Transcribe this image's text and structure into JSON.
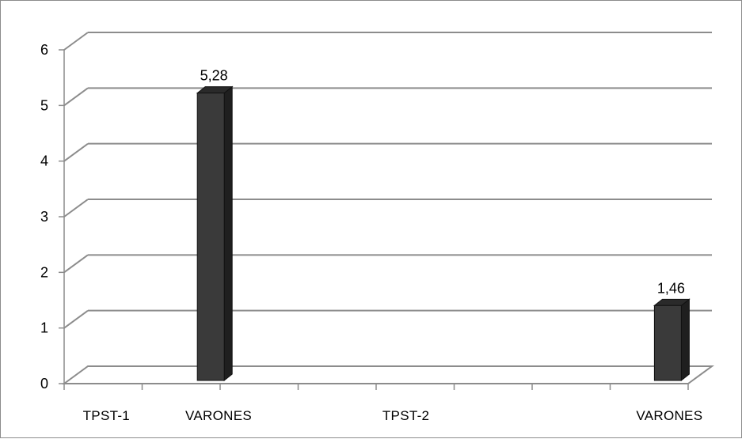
{
  "chart_data": {
    "type": "bar",
    "style": "3d-column",
    "categories": [
      "TPST-1",
      "VARONES",
      "TPST-2",
      "VARONES"
    ],
    "values": [
      null,
      5.28,
      null,
      1.46
    ],
    "data_labels": [
      "",
      "5,28",
      "",
      "1,46"
    ],
    "title": "",
    "xlabel": "",
    "ylabel": "",
    "ylim": [
      0,
      6
    ],
    "yticks": [
      0,
      1,
      2,
      3,
      4,
      5,
      6
    ],
    "grid": true,
    "legend": "none",
    "bar_color": "#3a3a3a",
    "grid_color": "#8c8c8c"
  }
}
